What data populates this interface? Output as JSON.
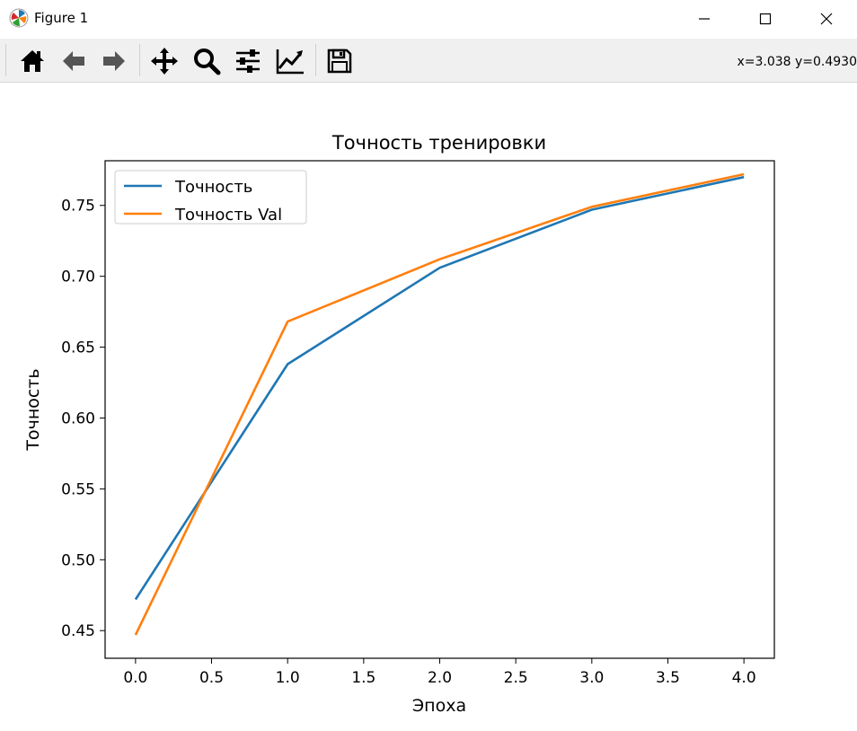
{
  "window": {
    "title": "Figure 1"
  },
  "toolbar": {
    "buttons": [
      {
        "name": "home-icon"
      },
      {
        "name": "back-arrow-icon"
      },
      {
        "name": "forward-arrow-icon"
      },
      {
        "name": "pan-icon"
      },
      {
        "name": "zoom-icon"
      },
      {
        "name": "configure-subplots-icon"
      },
      {
        "name": "edit-axis-icon"
      },
      {
        "name": "save-icon"
      }
    ],
    "coords": "x=3.038 y=0.4930"
  },
  "chart_data": {
    "type": "line",
    "title": "Точность тренировки",
    "xlabel": "Эпоха",
    "ylabel": "Точность",
    "x": [
      0,
      1,
      2,
      3,
      4
    ],
    "series": [
      {
        "name": "Точность",
        "color": "#1f77b4",
        "values": [
          0.472,
          0.638,
          0.706,
          0.747,
          0.77
        ]
      },
      {
        "name": "Точность Val",
        "color": "#ff7f0e",
        "values": [
          0.447,
          0.668,
          0.712,
          0.749,
          0.772
        ]
      }
    ],
    "xlim": [
      -0.2,
      4.2
    ],
    "ylim": [
      0.4305,
      0.7815
    ],
    "xticks": [
      0.0,
      0.5,
      1.0,
      1.5,
      2.0,
      2.5,
      3.0,
      3.5,
      4.0
    ],
    "xtick_labels": [
      "0.0",
      "0.5",
      "1.0",
      "1.5",
      "2.0",
      "2.5",
      "3.0",
      "3.5",
      "4.0"
    ],
    "yticks": [
      0.45,
      0.5,
      0.55,
      0.6,
      0.65,
      0.7,
      0.75
    ],
    "ytick_labels": [
      "0.45",
      "0.50",
      "0.55",
      "0.60",
      "0.65",
      "0.70",
      "0.75"
    ],
    "grid": false,
    "legend": "top-left"
  }
}
